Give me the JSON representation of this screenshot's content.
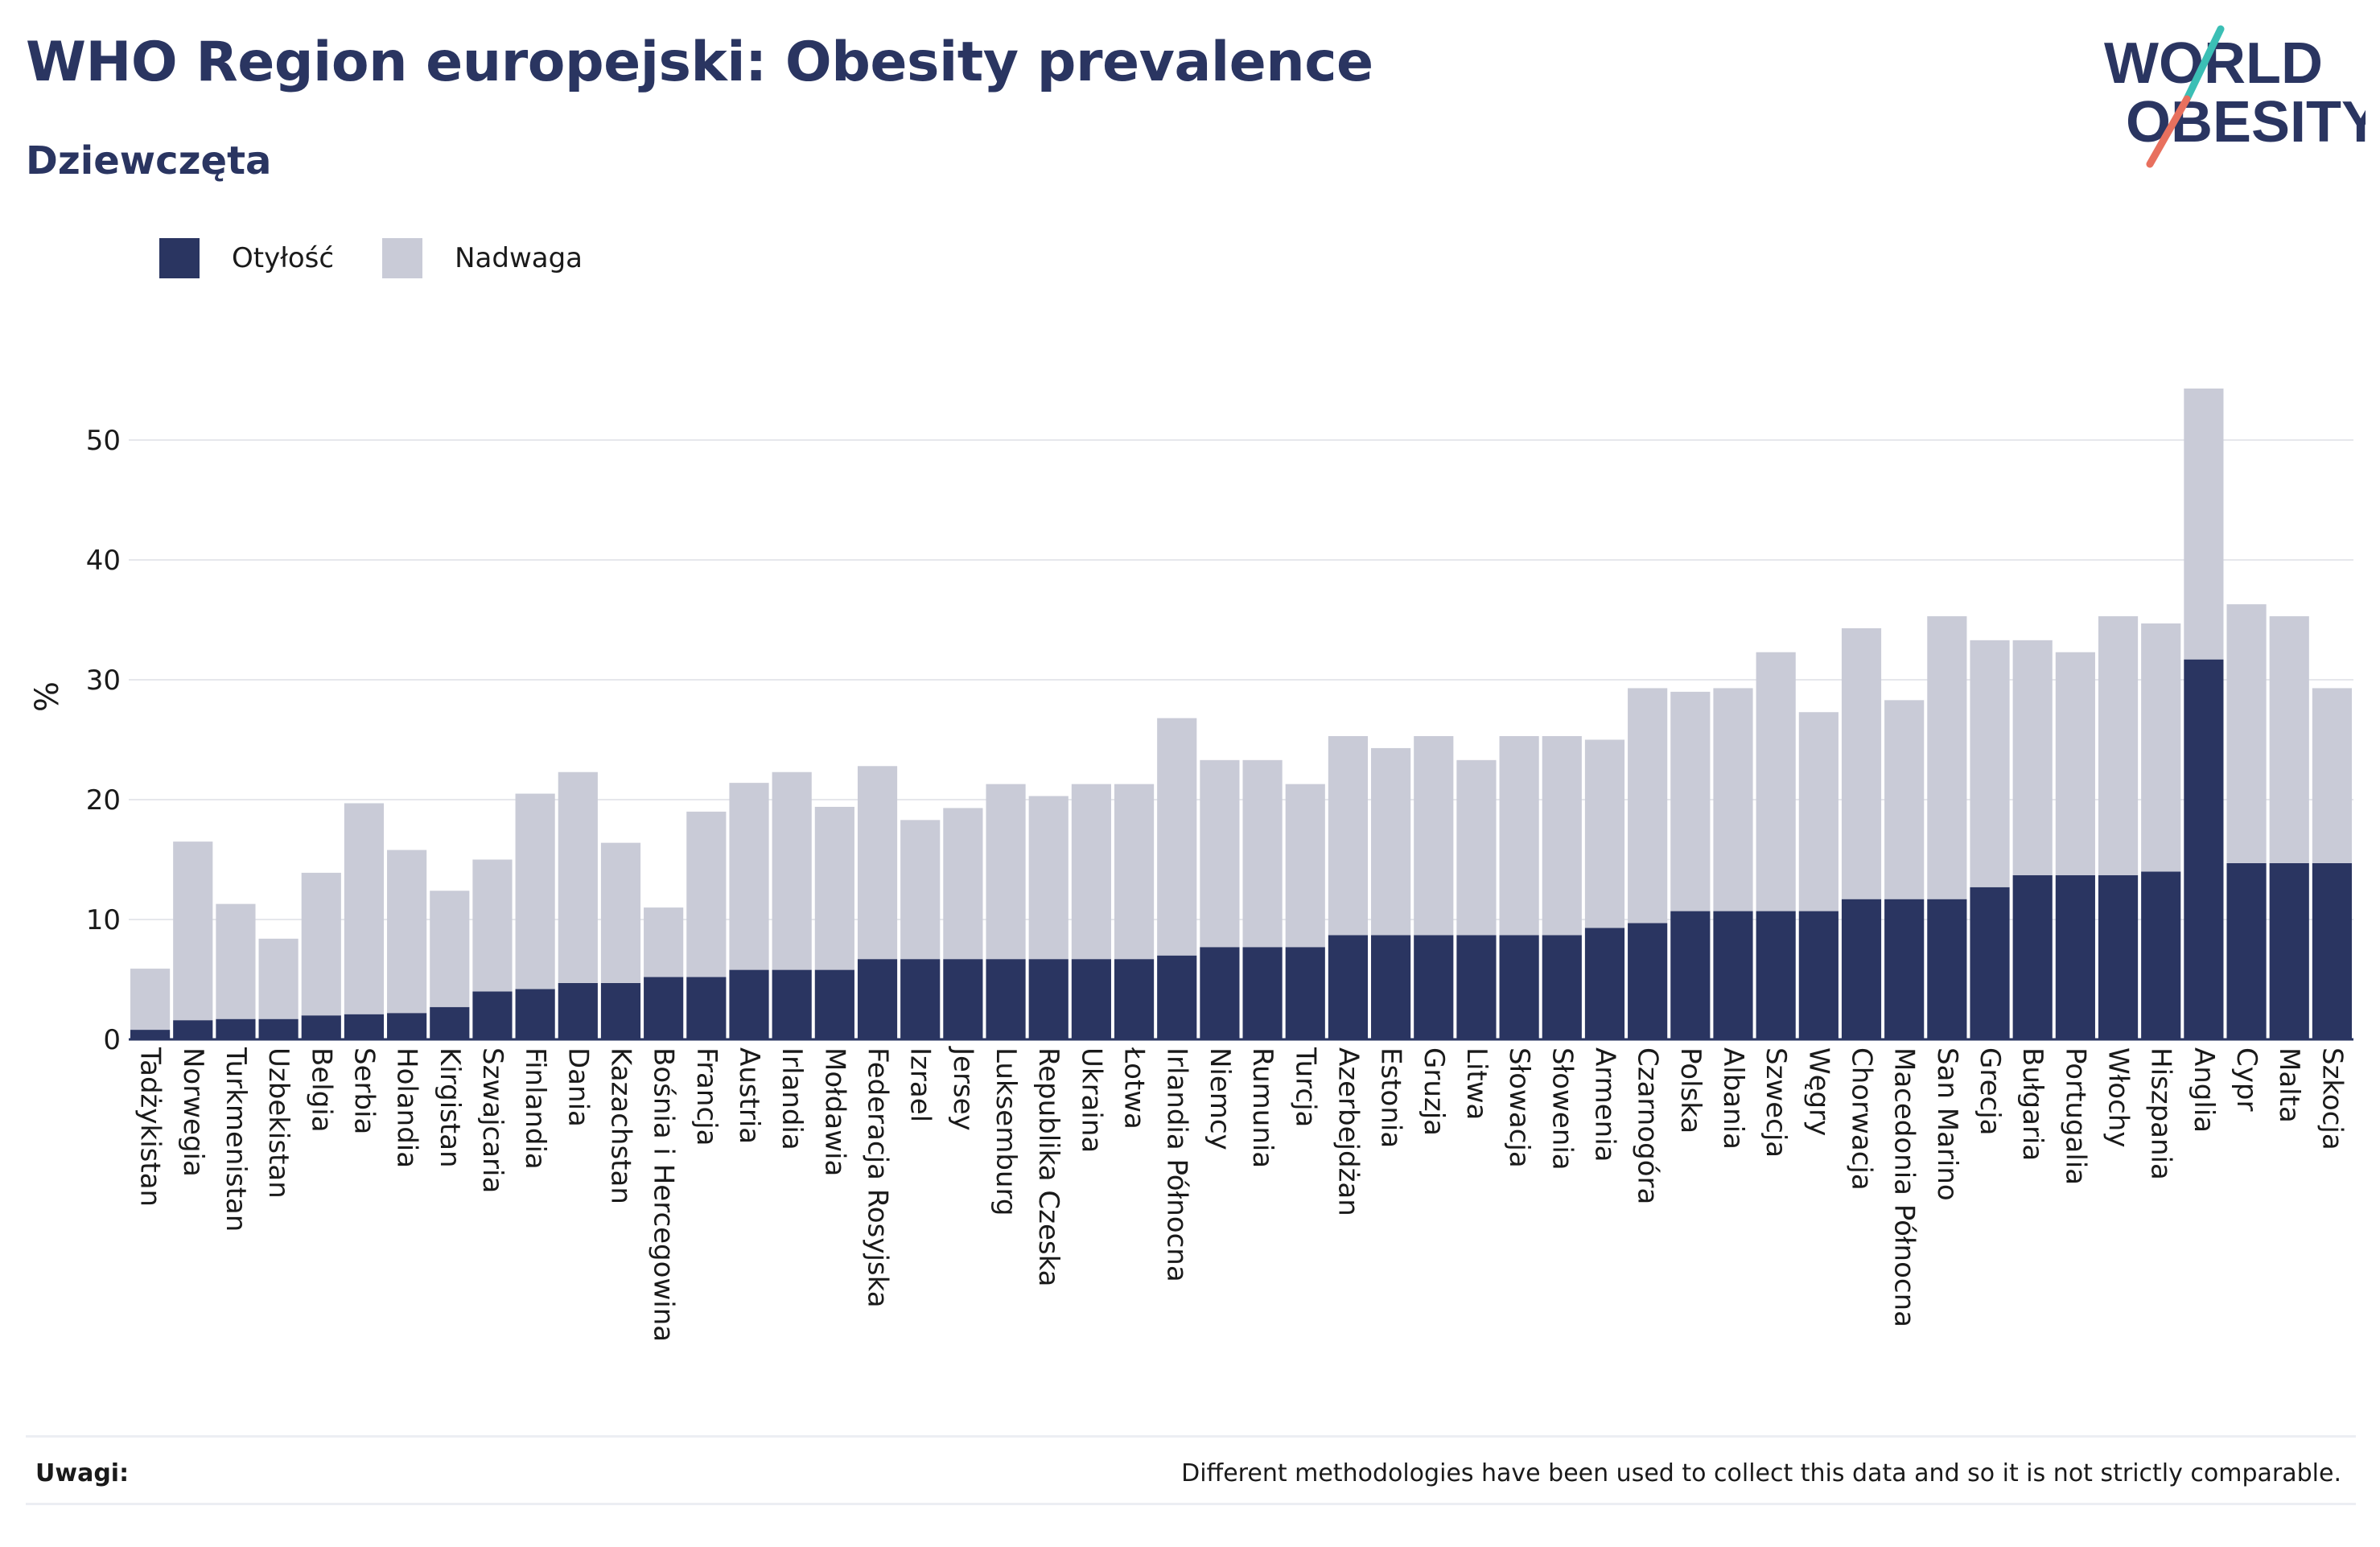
{
  "header": {
    "title": "WHO Region europejski: Obesity prevalence",
    "subtitle": "Dziewczęta"
  },
  "logo": {
    "line1": "WORLD",
    "line2": "OBESITY",
    "accent_teal": "#3bbfb5",
    "accent_coral": "#e8705e"
  },
  "legend": [
    {
      "label": "Otyłość",
      "color": "#2a3561"
    },
    {
      "label": "Nadwaga",
      "color": "#c9cbd7"
    }
  ],
  "chart_data": {
    "type": "bar",
    "stacked": true,
    "ylabel": "%",
    "ylim": [
      0,
      57
    ],
    "yticks": [
      0,
      10,
      20,
      30,
      40,
      50
    ],
    "grid": true,
    "legend_position": "top-left",
    "categories": [
      "Tadżykistan",
      "Norwegia",
      "Turkmenistan",
      "Uzbekistan",
      "Belgia",
      "Serbia",
      "Holandia",
      "Kirgistan",
      "Szwajcaria",
      "Finlandia",
      "Dania",
      "Kazachstan",
      "Bośnia i Hercegowina",
      "Francja",
      "Austria",
      "Irlandia",
      "Mołdawia",
      "Federacja Rosyjska",
      "Izrael",
      "Jersey",
      "Luksemburg",
      "Republika Czeska",
      "Ukraina",
      "Łotwa",
      "Irlandia Północna",
      "Niemcy",
      "Rumunia",
      "Turcja",
      "Azerbejdżan",
      "Estonia",
      "Gruzja",
      "Litwa",
      "Słowacja",
      "Słowenia",
      "Armenia",
      "Czarnogóra",
      "Polska",
      "Albania",
      "Szwecja",
      "Węgry",
      "Chorwacja",
      "Macedonia Północna",
      "San Marino",
      "Grecja",
      "Bułgaria",
      "Portugalia",
      "Włochy",
      "Hiszpania",
      "Anglia",
      "Cypr",
      "Malta",
      "Szkocja"
    ],
    "series": [
      {
        "name": "Otyłość",
        "color": "#2a3561",
        "values": [
          0.8,
          1.6,
          1.7,
          1.7,
          2.0,
          2.1,
          2.2,
          2.7,
          4.0,
          4.2,
          4.7,
          4.7,
          5.2,
          5.2,
          5.8,
          5.8,
          5.8,
          6.7,
          6.7,
          6.7,
          6.7,
          6.7,
          6.7,
          6.7,
          7.0,
          7.7,
          7.7,
          7.7,
          8.7,
          8.7,
          8.7,
          8.7,
          8.7,
          8.7,
          9.3,
          9.7,
          10.7,
          10.7,
          10.7,
          10.7,
          11.7,
          11.7,
          11.7,
          12.7,
          13.7,
          13.7,
          13.7,
          14.0,
          31.7,
          14.7,
          14.7,
          14.7
        ]
      },
      {
        "name": "Nadwaga",
        "color": "#c9cbd7",
        "values": [
          5.1,
          14.9,
          9.6,
          6.7,
          11.9,
          17.6,
          13.6,
          9.7,
          11.0,
          16.3,
          17.6,
          11.7,
          5.8,
          13.8,
          15.6,
          16.5,
          13.6,
          16.1,
          11.6,
          12.6,
          14.6,
          13.6,
          14.6,
          14.6,
          19.8,
          15.6,
          15.6,
          13.6,
          16.6,
          15.6,
          16.6,
          14.6,
          16.6,
          16.6,
          15.7,
          19.6,
          18.3,
          18.6,
          21.6,
          16.6,
          22.6,
          16.6,
          23.6,
          20.6,
          19.6,
          18.6,
          21.6,
          20.7,
          22.6,
          21.6,
          20.6,
          14.6
        ]
      }
    ]
  },
  "notes": {
    "label": "Uwagi:",
    "text": "Different methodologies have been used to collect this data and so it is not strictly comparable."
  }
}
